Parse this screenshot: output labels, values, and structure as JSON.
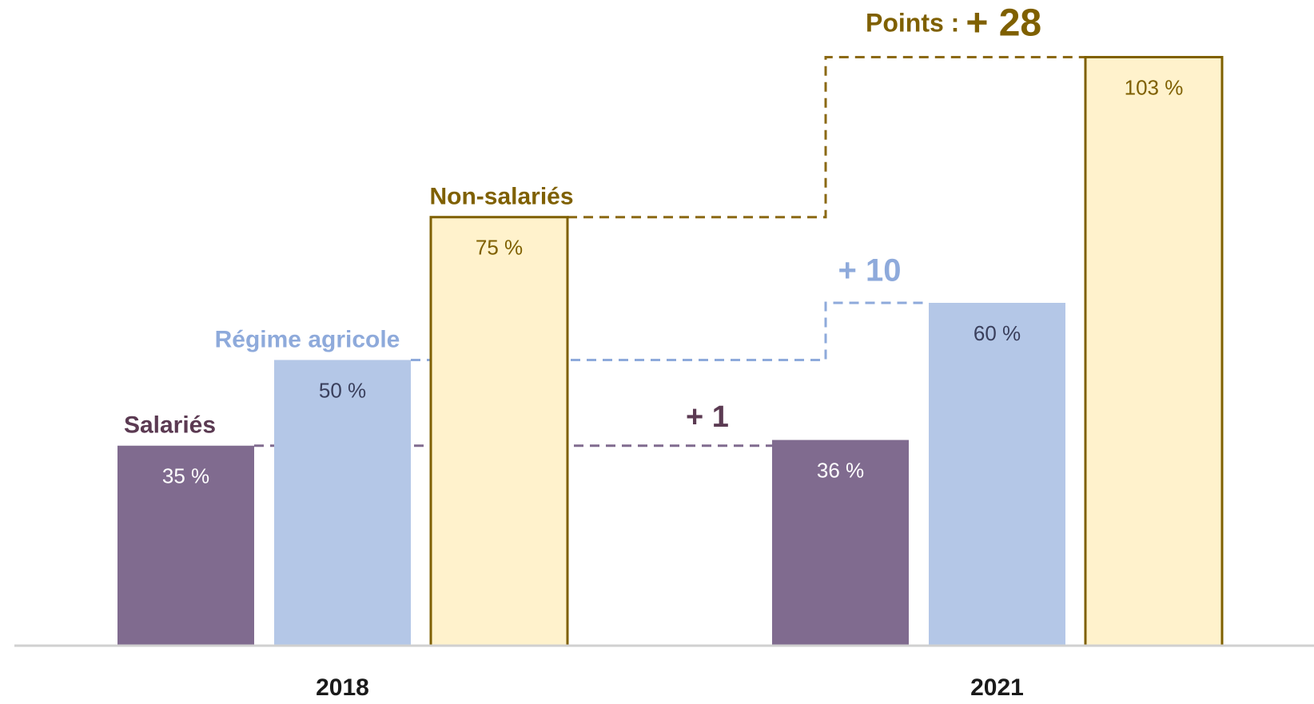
{
  "chart_data": {
    "type": "bar",
    "categories": [
      "2018",
      "2021"
    ],
    "series": [
      {
        "name": "Salariés",
        "color": "#806b8f",
        "stroke": "#806b8f",
        "values": [
          35,
          36
        ],
        "value_labels": [
          "35 %",
          "36 %"
        ],
        "label_color": "#ffffff",
        "name_color": "#5b3a52"
      },
      {
        "name": "Régime agricole",
        "color": "#b4c7e7",
        "stroke": "#b4c7e7",
        "values": [
          50,
          60
        ],
        "value_labels": [
          "50 %",
          "60 %"
        ],
        "label_color": "#3a3f5c",
        "name_color": "#8eaadb"
      },
      {
        "name": "Non-salariés",
        "color": "#fff2cc",
        "stroke": "#7f6000",
        "values": [
          75,
          103
        ],
        "value_labels": [
          "75 %",
          "103 %"
        ],
        "label_color": "#7f6000",
        "name_color": "#7f6000"
      }
    ],
    "annotations": [
      "+ 1",
      "+ 10",
      "+ 28"
    ],
    "points_label": "Points :",
    "ylim": [
      0,
      113
    ]
  }
}
